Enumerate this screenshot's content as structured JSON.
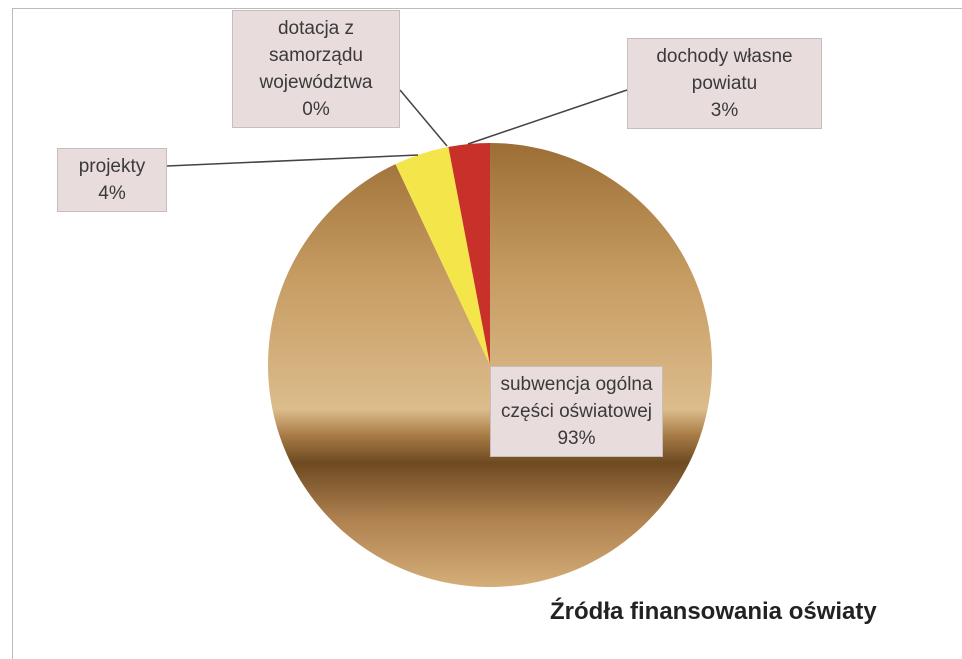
{
  "chart_data": {
    "type": "pie",
    "title": "Źródła finansowania oświaty",
    "categories": [
      "subwencja ogólna części oświatowej",
      "projekty",
      "dotacja z samorządu województwa",
      "dochody własne powiatu"
    ],
    "values": [
      93,
      4,
      0,
      3
    ],
    "value_labels": [
      "93%",
      "4%",
      "0%",
      "3%"
    ],
    "colors": [
      "#c49a5c",
      "#f4e64a",
      "#e8d060",
      "#c8302a"
    ]
  }
}
